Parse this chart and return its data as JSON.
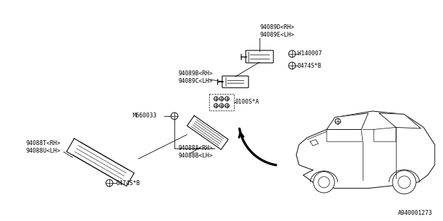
{
  "bg_color": "#ffffff",
  "line_color": "#000000",
  "text_color": "#000000",
  "diagram_id": "A940001273",
  "font_size": 6.0,
  "label_94089DE": "94089D<RH>\n94089E<LH>",
  "label_94089BC": "94089B<RH>\n94089C<LH>",
  "label_0100SA": "0100S*A",
  "label_M660033": "M660033",
  "label_94088TU": "94088T<RH>\n94088U<LH>",
  "label_0474SB_left": "0474S*B",
  "label_94088AB": "94088A<RH>\n94088B<LH>",
  "label_W140007": "W140007",
  "label_0474SB_right": "0474S*B"
}
